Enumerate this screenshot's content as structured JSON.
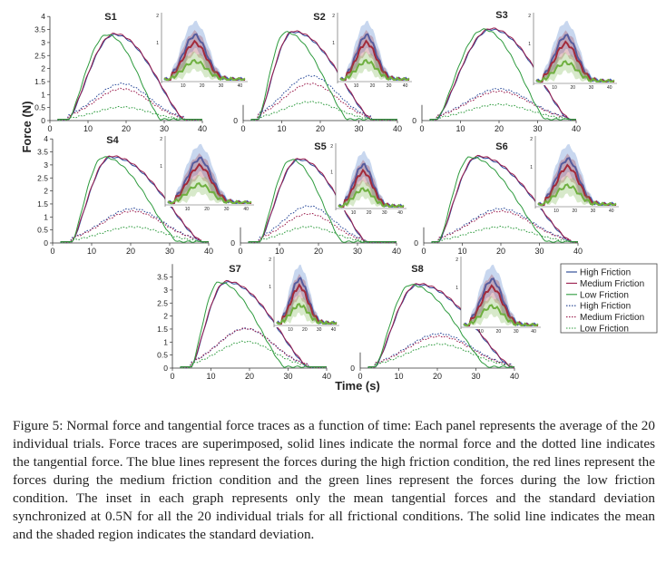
{
  "chart_data": {
    "type": "line",
    "ylabel": "Force (N)",
    "xlabel": "Time (s)",
    "xlim": [
      0,
      40
    ],
    "ylim": [
      0,
      4
    ],
    "main_xticks": [
      0,
      10,
      20,
      30,
      40
    ],
    "main_yticks": [
      0,
      0.5,
      1,
      1.5,
      2,
      2.5,
      3,
      3.5,
      4
    ],
    "inset_ticks": [
      "10",
      "20",
      "30",
      "40"
    ],
    "inset_y_labels": [
      "2",
      "1"
    ],
    "legend": {
      "position": "right",
      "entries": [
        {
          "label": "High Friction",
          "color": "#1f3f8f",
          "style": "solid"
        },
        {
          "label": "Medium Friction",
          "color": "#9b1d4d",
          "style": "solid"
        },
        {
          "label": "Low Friction",
          "color": "#2e9b3e",
          "style": "solid"
        },
        {
          "label": "High Friction",
          "color": "#1f3f8f",
          "style": "dotted"
        },
        {
          "label": "Medium Friction",
          "color": "#9b1d4d",
          "style": "dotted"
        },
        {
          "label": "Low Friction",
          "color": "#2e9b3e",
          "style": "dotted"
        }
      ]
    },
    "colors": {
      "high": "#2a4a9a",
      "medium": "#9b1d4d",
      "low": "#2e9b3e",
      "inset_high": "#3a6fc4",
      "inset_medium": "#a32a3a",
      "inset_low": "#6fb040"
    },
    "panels": [
      {
        "name": "S1",
        "normal_peak": [
          3.3,
          3.3,
          3.3
        ],
        "tangential_peak": [
          1.4,
          1.2,
          0.5
        ],
        "span": [
          5,
          35
        ],
        "peak_time": 17
      },
      {
        "name": "S2",
        "normal_peak": [
          3.4,
          3.4,
          3.4
        ],
        "tangential_peak": [
          1.7,
          1.4,
          0.7
        ],
        "span": [
          4,
          33
        ],
        "peak_time": 13
      },
      {
        "name": "S3",
        "normal_peak": [
          3.5,
          3.5,
          3.5
        ],
        "tangential_peak": [
          1.2,
          1.1,
          0.6
        ],
        "span": [
          4,
          38
        ],
        "peak_time": 18
      },
      {
        "name": "S4",
        "normal_peak": [
          3.3,
          3.3,
          3.3
        ],
        "tangential_peak": [
          1.3,
          1.2,
          0.6
        ],
        "span": [
          5,
          38
        ],
        "peak_time": 15
      },
      {
        "name": "S5",
        "normal_peak": [
          3.2,
          3.2,
          3.2
        ],
        "tangential_peak": [
          1.4,
          1.1,
          0.6
        ],
        "span": [
          5,
          32
        ],
        "peak_time": 15
      },
      {
        "name": "S6",
        "normal_peak": [
          3.3,
          3.3,
          3.3
        ],
        "tangential_peak": [
          1.3,
          1.2,
          0.6
        ],
        "span": [
          4,
          38
        ],
        "peak_time": 14
      },
      {
        "name": "S7",
        "normal_peak": [
          3.3,
          3.3,
          3.3
        ],
        "tangential_peak": [
          1.5,
          1.5,
          1.0
        ],
        "span": [
          5,
          35
        ],
        "peak_time": 14
      },
      {
        "name": "S8",
        "normal_peak": [
          3.2,
          3.2,
          3.2
        ],
        "tangential_peak": [
          1.3,
          1.2,
          0.9
        ],
        "span": [
          4,
          39
        ],
        "peak_time": 15
      }
    ]
  },
  "caption": "Figure 5: Normal force and tangential force traces as a function of time: Each panel represents the average of the 20 individual trials. Force traces are superimposed, solid lines indicate the normal force and the dotted line indicates the tangential force. The blue lines represent the forces during the high friction condition, the red lines represent the forces during the medium friction condition and the green lines represent the forces during the low friction condition. The inset in each graph represents only the mean tangential forces and the standard deviation synchronized at 0.5N for all the 20 individual trials for all frictional conditions. The solid line indicates the mean and the shaded region indicates the standard deviation."
}
